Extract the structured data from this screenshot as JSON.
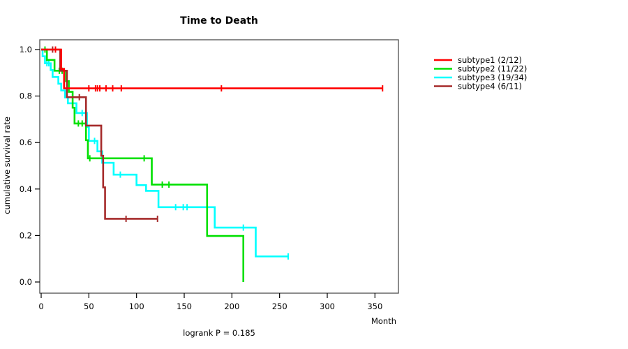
{
  "chart_data": {
    "type": "line",
    "subtype": "kaplan-meier-step",
    "title": "Time to Death",
    "ylabel": "cumulative survival rate",
    "xlabel": "Month",
    "annotation": "logrank P = 0.185",
    "x_ticks": [
      {
        "v": 0,
        "label": "0"
      },
      {
        "v": 50,
        "label": "50"
      },
      {
        "v": 100,
        "label": "100"
      },
      {
        "v": 150,
        "label": "150"
      },
      {
        "v": 200,
        "label": "200"
      },
      {
        "v": 250,
        "label": "250"
      },
      {
        "v": 300,
        "label": "300"
      },
      {
        "v": 350,
        "label": "350"
      }
    ],
    "y_ticks": [
      {
        "v": 0.0,
        "label": "0.0"
      },
      {
        "v": 0.2,
        "label": "0.2"
      },
      {
        "v": 0.4,
        "label": "0.4"
      },
      {
        "v": 0.6,
        "label": "0.6"
      },
      {
        "v": 0.8,
        "label": "0.8"
      },
      {
        "v": 1.0,
        "label": "1.0"
      }
    ],
    "xlim": [
      0,
      375
    ],
    "ylim": [
      0.0,
      1.0
    ],
    "grid": false,
    "legend_position": "right-outside",
    "series": [
      {
        "name": "subtype1 (2/12)",
        "color": "#ff0000",
        "start_value": 1.0,
        "events": [
          [
            21,
            0.917
          ],
          [
            24,
            0.833
          ]
        ],
        "censors": [
          [
            15,
            1.0
          ],
          [
            50,
            0.833
          ],
          [
            57,
            0.833
          ],
          [
            59,
            0.833
          ],
          [
            61.5,
            0.833
          ],
          [
            68,
            0.833
          ],
          [
            75,
            0.833
          ],
          [
            84,
            0.833
          ],
          [
            189,
            0.833
          ],
          [
            358,
            0.833
          ]
        ],
        "end_month": 358
      },
      {
        "name": "subtype2 (11/22)",
        "color": "#00e000",
        "start_value": 1.0,
        "events": [
          [
            6,
            0.955
          ],
          [
            14,
            0.909
          ],
          [
            26,
            0.864
          ],
          [
            29,
            0.818
          ],
          [
            33,
            0.75
          ],
          [
            35,
            0.682
          ],
          [
            47,
            0.61
          ],
          [
            49,
            0.532
          ],
          [
            116,
            0.419
          ],
          [
            174,
            0.198
          ],
          [
            212,
            0.0
          ]
        ],
        "censors": [
          [
            4,
            1.0
          ],
          [
            19,
            0.909
          ],
          [
            22,
            0.909
          ],
          [
            39,
            0.682
          ],
          [
            43,
            0.682
          ],
          [
            51,
            0.532
          ],
          [
            108,
            0.532
          ],
          [
            127,
            0.419
          ],
          [
            134,
            0.419
          ]
        ],
        "end_month": 212
      },
      {
        "name": "subtype3 (19/34)",
        "color": "#00ffff",
        "start_value": 1.0,
        "events": [
          [
            1.5,
            0.971
          ],
          [
            4,
            0.941
          ],
          [
            10,
            0.912
          ],
          [
            12,
            0.882
          ],
          [
            18,
            0.853
          ],
          [
            21,
            0.824
          ],
          [
            25,
            0.794
          ],
          [
            28,
            0.769
          ],
          [
            37,
            0.727
          ],
          [
            48,
            0.667
          ],
          [
            50,
            0.607
          ],
          [
            59,
            0.562
          ],
          [
            64,
            0.513
          ],
          [
            76,
            0.462
          ],
          [
            100,
            0.417
          ],
          [
            110,
            0.392
          ],
          [
            123,
            0.322
          ],
          [
            182,
            0.234
          ],
          [
            225,
            0.11
          ]
        ],
        "censors": [
          [
            6,
            0.941
          ],
          [
            8,
            0.941
          ],
          [
            43,
            0.727
          ],
          [
            56,
            0.607
          ],
          [
            83,
            0.462
          ],
          [
            141,
            0.322
          ],
          [
            149,
            0.322
          ],
          [
            153,
            0.322
          ],
          [
            212,
            0.234
          ],
          [
            259,
            0.11
          ]
        ],
        "end_month": 259
      },
      {
        "name": "subtype4 (6/11)",
        "color": "#a52a2a",
        "start_value": 1.0,
        "events": [
          [
            20,
            0.909
          ],
          [
            27,
            0.795
          ],
          [
            47,
            0.673
          ],
          [
            63,
            0.543
          ],
          [
            65,
            0.407
          ],
          [
            67,
            0.272
          ]
        ],
        "censors": [
          [
            12,
            1.0
          ],
          [
            40,
            0.795
          ],
          [
            89,
            0.272
          ],
          [
            122,
            0.272
          ]
        ],
        "end_month": 122
      }
    ],
    "legend": [
      {
        "label": "subtype1 (2/12)",
        "color": "#ff0000"
      },
      {
        "label": "subtype2 (11/22)",
        "color": "#00e000"
      },
      {
        "label": "subtype3 (19/34)",
        "color": "#00ffff"
      },
      {
        "label": "subtype4 (6/11)",
        "color": "#a52a2a"
      }
    ]
  }
}
